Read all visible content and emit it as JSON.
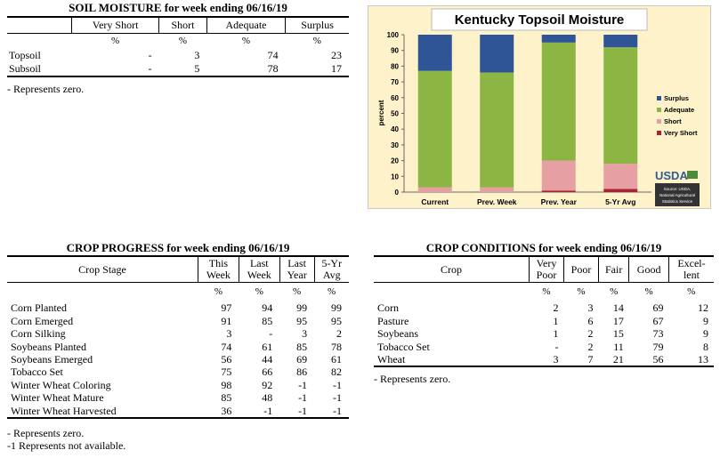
{
  "soil": {
    "title": "SOIL MOISTURE for week ending 06/16/19",
    "columns": [
      "Very Short",
      "Short",
      "Adequate",
      "Surplus"
    ],
    "pct": "%",
    "rows": [
      {
        "label": "Topsoil",
        "values": [
          "-",
          "3",
          "74",
          "23"
        ]
      },
      {
        "label": "Subsoil",
        "values": [
          "-",
          "5",
          "78",
          "17"
        ]
      }
    ],
    "note": "- Represents zero."
  },
  "progress": {
    "title": "CROP PROGRESS for week ending 06/16/19",
    "headers": {
      "stage": "Crop Stage",
      "c1a": "This",
      "c1b": "Week",
      "c2a": "Last",
      "c2b": "Week",
      "c3a": "Last",
      "c3b": "Year",
      "c4a": "5-Yr",
      "c4b": "Avg"
    },
    "pct": "%",
    "rows": [
      {
        "label": "Corn Planted",
        "values": [
          "97",
          "94",
          "99",
          "99"
        ]
      },
      {
        "label": "Corn Emerged",
        "values": [
          "91",
          "85",
          "95",
          "95"
        ]
      },
      {
        "label": "Corn Silking",
        "values": [
          "3",
          "-",
          "3",
          "2"
        ]
      },
      {
        "label": "Soybeans Planted",
        "values": [
          "74",
          "61",
          "85",
          "78"
        ]
      },
      {
        "label": "Soybeans Emerged",
        "values": [
          "56",
          "44",
          "69",
          "61"
        ]
      },
      {
        "label": "Tobacco Set",
        "values": [
          "75",
          "66",
          "86",
          "82"
        ]
      },
      {
        "label": "Winter Wheat Coloring",
        "values": [
          "98",
          "92",
          "-1",
          "-1"
        ]
      },
      {
        "label": "Winter Wheat Mature",
        "values": [
          "85",
          "48",
          "-1",
          "-1"
        ]
      },
      {
        "label": "Winter Wheat Harvested",
        "values": [
          "36",
          "-1",
          "-1",
          "-1"
        ]
      }
    ],
    "note1": "- Represents zero.",
    "note2": "-1 Represents not available."
  },
  "conditions": {
    "title": "CROP CONDITIONS for week ending 06/16/19",
    "headers": {
      "crop": "Crop",
      "vp_a": "Very",
      "vp_b": "Poor",
      "poor": "Poor",
      "fair": "Fair",
      "good": "Good",
      "ex_a": "Excel-",
      "ex_b": "lent"
    },
    "pct": "%",
    "rows": [
      {
        "label": "Corn",
        "values": [
          "2",
          "3",
          "14",
          "69",
          "12"
        ]
      },
      {
        "label": "Pasture",
        "values": [
          "1",
          "6",
          "17",
          "67",
          "9"
        ]
      },
      {
        "label": "Soybeans",
        "values": [
          "1",
          "2",
          "15",
          "73",
          "9"
        ]
      },
      {
        "label": "Tobacco Set",
        "values": [
          "-",
          "2",
          "11",
          "79",
          "8"
        ]
      },
      {
        "label": "Wheat",
        "values": [
          "3",
          "7",
          "21",
          "56",
          "13"
        ]
      }
    ],
    "note": "- Represents zero."
  },
  "chart_data": {
    "type": "bar",
    "stacked": true,
    "title": "Kentucky Topsoil Moisture",
    "ylabel": "percent",
    "xlabel": "",
    "ylim": [
      0,
      100
    ],
    "yticks": [
      0,
      10,
      20,
      30,
      40,
      50,
      60,
      70,
      80,
      90,
      100
    ],
    "grid": false,
    "legend_position": "right",
    "categories": [
      "Current",
      "Prev. Week",
      "Prev. Year",
      "5-Yr Avg"
    ],
    "series": [
      {
        "name": "Very Short",
        "color": "#a8232f",
        "values": [
          0,
          0,
          1,
          2
        ]
      },
      {
        "name": "Short",
        "color": "#e6a0a4",
        "values": [
          3,
          3,
          19,
          16
        ]
      },
      {
        "name": "Adequate",
        "color": "#8db544",
        "values": [
          74,
          73,
          75,
          74
        ]
      },
      {
        "name": "Surplus",
        "color": "#2f5597",
        "values": [
          23,
          24,
          5,
          8
        ]
      }
    ],
    "legend_order": [
      "Surplus",
      "Adequate",
      "Short",
      "Very Short"
    ],
    "logo": {
      "text": "USDA",
      "source_lines": [
        "Source: USDA,",
        "National Agricultural",
        "Statistics Service"
      ]
    }
  }
}
